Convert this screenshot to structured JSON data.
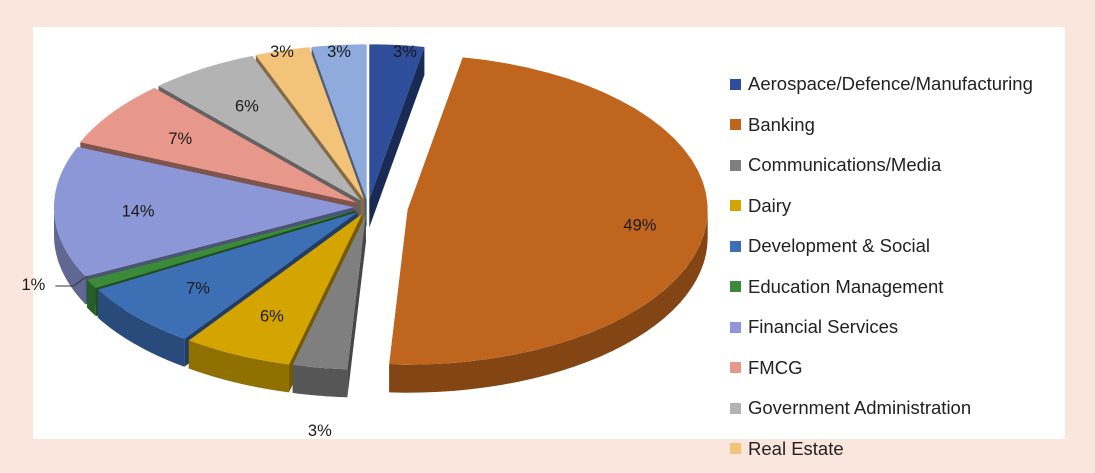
{
  "chart_data": {
    "type": "pie",
    "style": "3d exploded",
    "slices": [
      {
        "label": "Aerospace/Defence/Manufacturing",
        "value": 3,
        "value_label": "3%",
        "color": "#2e4d9b"
      },
      {
        "label": "Banking",
        "value": 49,
        "value_label": "49%",
        "color": "#c0651e"
      },
      {
        "label": "Communications/Media",
        "value": 3,
        "value_label": "3%",
        "color": "#7f7f7f"
      },
      {
        "label": "Dairy",
        "value": 6,
        "value_label": "6%",
        "color": "#d4a400"
      },
      {
        "label": "Development & Social",
        "value": 7,
        "value_label": "7%",
        "color": "#3d6fb5"
      },
      {
        "label": "Education Management",
        "value": 1,
        "value_label": "1%",
        "color": "#3a8a3a"
      },
      {
        "label": "Financial Services",
        "value": 14,
        "value_label": "14%",
        "color": "#8b97d6"
      },
      {
        "label": "FMCG",
        "value": 7,
        "value_label": "7%",
        "color": "#e8988a"
      },
      {
        "label": "Government Administration",
        "value": 6,
        "value_label": "6%",
        "color": "#b3b3b3"
      },
      {
        "label": "Real Estate",
        "value": 3,
        "value_label": "3%",
        "color": "#f3c37a"
      },
      {
        "value": 3,
        "value_label": "3%",
        "color": "#8faadc",
        "in_legend": false
      }
    ],
    "legend_position": "right"
  }
}
